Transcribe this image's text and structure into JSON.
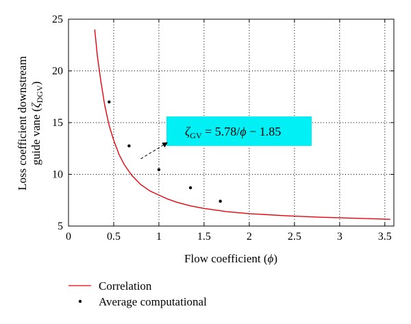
{
  "chart_data": {
    "type": "line",
    "xlabel": "Flow coefficient (",
    "xlabel_symbol": "ϕ",
    "xlabel_close": ")",
    "ylabel_line1": "Loss coefficient downstream",
    "ylabel_line2": "guide vane (",
    "ylabel_symbol": "ζ",
    "ylabel_sub": "DGV",
    "ylabel_close": ")",
    "xlim": [
      0,
      3.6
    ],
    "ylim": [
      5,
      25
    ],
    "x_ticks": [
      "0",
      "0.5",
      "1",
      "1.5",
      "2",
      "2.5",
      "3",
      "3.5"
    ],
    "y_ticks": [
      "5",
      "10",
      "15",
      "20",
      "25"
    ],
    "grid": true,
    "series": [
      {
        "name": "Correlation",
        "kind": "line",
        "color": "#e8000b",
        "x": [
          0.29,
          0.32,
          0.36,
          0.4,
          0.45,
          0.5,
          0.56,
          0.62,
          0.7,
          0.8,
          0.9,
          1.0,
          1.1,
          1.2,
          1.35,
          1.5,
          1.75,
          2.0,
          2.4,
          2.8,
          3.2,
          3.56
        ],
        "y": [
          24.0,
          21.4,
          18.9,
          16.7,
          14.7,
          13.3,
          11.9,
          10.9,
          9.9,
          9.0,
          8.4,
          8.0,
          7.6,
          7.3,
          6.95,
          6.7,
          6.4,
          6.2,
          6.0,
          5.85,
          5.75,
          5.65
        ]
      },
      {
        "name": "Average computational",
        "kind": "scatter",
        "color": "#000000",
        "x": [
          0.45,
          0.67,
          1.0,
          1.35,
          1.68
        ],
        "y": [
          17.0,
          12.75,
          10.45,
          8.7,
          7.4
        ]
      }
    ],
    "annotation": {
      "symbol": "ζ",
      "sub": "GV",
      "formula": " = 5.78/",
      "phi": "ϕ",
      "rest": " − 1.85",
      "box_color": "#00f0f5",
      "arrow_from": [
        0.8,
        11.5
      ],
      "arrow_to": [
        1.1,
        13.1
      ]
    },
    "legend_position": "bottom-left"
  }
}
